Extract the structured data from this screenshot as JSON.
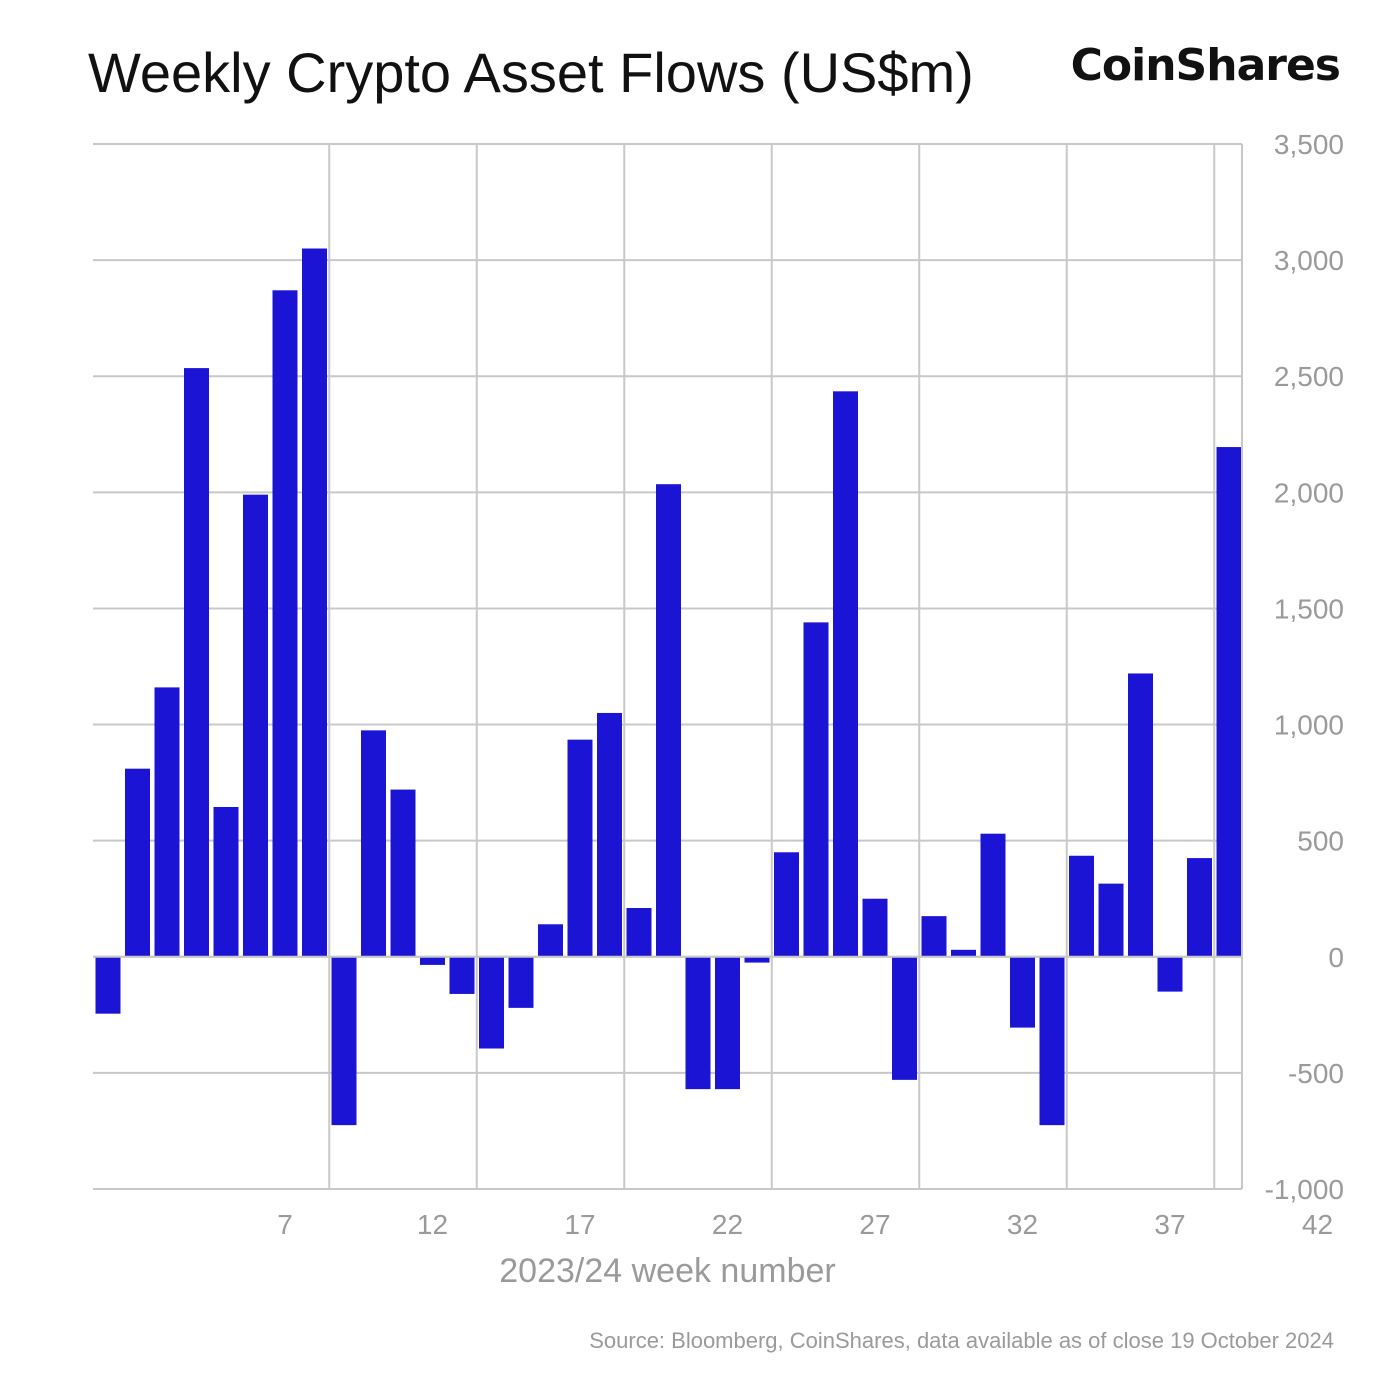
{
  "title": "Weekly Crypto Asset Flows (US$m)",
  "brand": "CoinShares",
  "source": "Source: Bloomberg, CoinShares, data available as of close 19 October 2024",
  "colors": {
    "bar": "#1c14d4",
    "grid": "#c8c8c8",
    "text": "#9a9a9a"
  },
  "chart_data": {
    "type": "bar",
    "xlabel": "2023/24 week number",
    "ylabel": "",
    "y_axis_position": "right",
    "grid": true,
    "ylim": [
      -1000,
      3500
    ],
    "yticks": [
      -1000,
      -500,
      0,
      500,
      1000,
      1500,
      2000,
      2500,
      3000,
      3500
    ],
    "ytick_labels": [
      "-1,000",
      "-500",
      "0",
      "500",
      "1,000",
      "1,500",
      "2,000",
      "2,500",
      "3,000",
      "3,500"
    ],
    "xticks": [
      7,
      12,
      17,
      22,
      27,
      32,
      37,
      42
    ],
    "weeks": [
      4,
      5,
      6,
      7,
      8,
      9,
      10,
      11,
      12,
      13,
      14,
      15,
      16,
      17,
      18,
      19,
      20,
      21,
      22,
      23,
      24,
      25,
      26,
      27,
      28,
      29,
      30,
      31,
      32,
      33,
      34,
      35,
      36,
      37,
      38,
      39,
      40,
      41,
      42
    ],
    "values": [
      -245,
      810,
      1160,
      2535,
      645,
      1990,
      2870,
      3050,
      -725,
      975,
      720,
      -35,
      -160,
      -395,
      -220,
      140,
      935,
      1050,
      210,
      2035,
      -570,
      -570,
      -25,
      450,
      1440,
      2435,
      250,
      -530,
      175,
      30,
      530,
      -305,
      -725,
      435,
      315,
      1220,
      -150,
      425,
      2195
    ]
  }
}
